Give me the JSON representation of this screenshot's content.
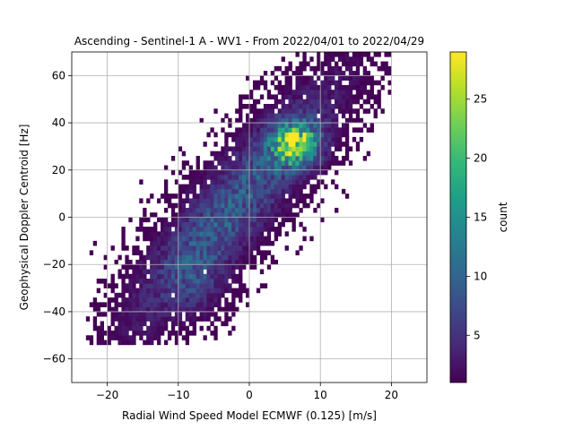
{
  "chart_data": {
    "type": "heatmap",
    "title": "Ascending - Sentinel-1 A - WV1 - From 2022/04/01 to 2022/04/29",
    "xlabel": "Radial Wind Speed Model ECMWF (0.125) [m/s]",
    "ylabel": "Geophysical Doppler Centroid [Hz]",
    "xlim": [
      -25,
      25
    ],
    "ylim": [
      -70,
      70
    ],
    "xticks": [
      -20,
      -10,
      0,
      10,
      20
    ],
    "yticks": [
      -60,
      -40,
      -20,
      0,
      20,
      40,
      60
    ],
    "grid": true,
    "colormap": "viridis",
    "colorbar": {
      "label": "count",
      "range": [
        1,
        29
      ],
      "ticks": [
        5,
        10,
        15,
        20,
        25
      ]
    },
    "bin_width": 0.5,
    "bin_height": 2,
    "density_model": {
      "trend_slope_hz_per_ms": 3.1,
      "trend_intercept_hz": 12,
      "hotspot_center": [
        6.5,
        31
      ],
      "hotspot_peak": 29,
      "range_x": [
        -23,
        20
      ],
      "range_y": [
        -54,
        70
      ]
    }
  },
  "colors": {
    "grid": "#b0b0b0",
    "axes": "#000000",
    "cmap_stops": [
      "#440154",
      "#482878",
      "#3e4989",
      "#31688e",
      "#26828e",
      "#1f9e89",
      "#35b779",
      "#6ece58",
      "#b5de2b",
      "#fde725"
    ]
  }
}
